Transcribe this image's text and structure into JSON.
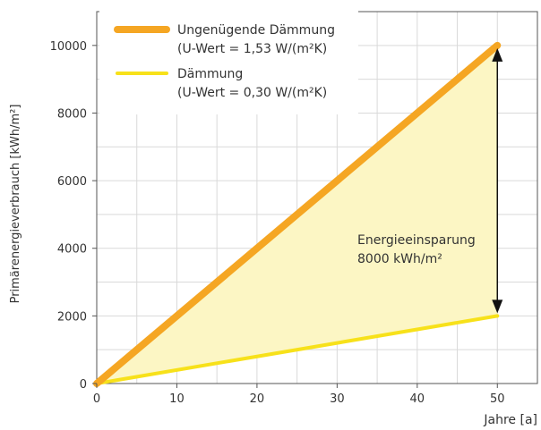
{
  "chart_data": {
    "type": "line",
    "title": "",
    "xlabel": "Jahre [a]",
    "ylabel": "Primärenergieverbrauch [kWh/m²]",
    "xlim": [
      0,
      55
    ],
    "ylim": [
      0,
      11000
    ],
    "xticks": [
      "0",
      "10",
      "20",
      "30",
      "40",
      "50"
    ],
    "yticks": [
      "0",
      "2000",
      "4000",
      "6000",
      "8000",
      "10000"
    ],
    "grid": true,
    "legend": "top-left",
    "series": [
      {
        "name": "Ungenügende Dämmung",
        "name_line2": "(U-Wert = 1,53 W/(m²K)",
        "color": "#f5a623",
        "x": [
          0,
          50
        ],
        "y": [
          0,
          10000
        ]
      },
      {
        "name": "Dämmung",
        "name_line2": "(U-Wert = 0,30 W/(m²K)",
        "color": "#f7e11a",
        "x": [
          0,
          50
        ],
        "y": [
          0,
          2000
        ]
      }
    ],
    "fill_between_color": "#fcf6c4",
    "annotation": {
      "line1": "Energieeinsparung",
      "line2": "8000 kWh/m²",
      "x": 50,
      "y_from": 2000,
      "y_to": 10000
    }
  }
}
